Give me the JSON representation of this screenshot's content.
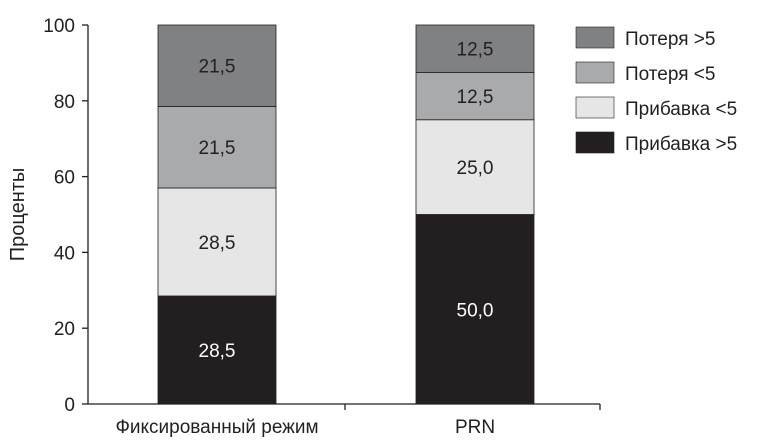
{
  "chart_data": {
    "type": "bar",
    "stacked": true,
    "categories": [
      "Фиксированный режим",
      "PRN"
    ],
    "series": [
      {
        "name": "Прибавка >5",
        "values": [
          28.5,
          50.0
        ],
        "labels": [
          "28,5",
          "50,0"
        ],
        "color": "#231f20",
        "label_color": "#ffffff"
      },
      {
        "name": "Прибавка <5",
        "values": [
          28.5,
          25.0
        ],
        "labels": [
          "28,5",
          "25,0"
        ],
        "color": "#e6e6e7",
        "label_color": "#231f20"
      },
      {
        "name": "Потеря <5",
        "values": [
          21.5,
          12.5
        ],
        "labels": [
          "21,5",
          "12,5"
        ],
        "color": "#a9aaac",
        "label_color": "#231f20"
      },
      {
        "name": "Потеря >5",
        "values": [
          21.5,
          12.5
        ],
        "labels": [
          "21,5",
          "12,5"
        ],
        "color": "#808183",
        "label_color": "#231f20"
      }
    ],
    "legend_order": [
      "Потеря >5",
      "Потеря <5",
      "Прибавка <5",
      "Прибавка >5"
    ],
    "ylabel": "Проценты",
    "xlabel": "",
    "ylim": [
      0,
      100
    ],
    "yticks": [
      "0",
      "20",
      "40",
      "60",
      "80",
      "100"
    ],
    "grid": false,
    "legend_position": "top-right"
  }
}
